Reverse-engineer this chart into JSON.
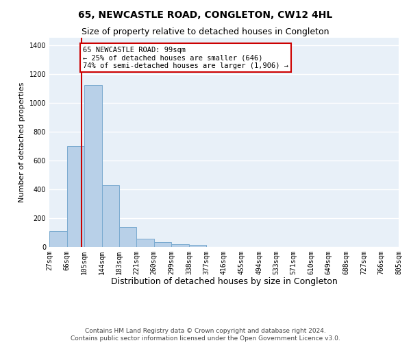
{
  "title": "65, NEWCASTLE ROAD, CONGLETON, CW12 4HL",
  "subtitle": "Size of property relative to detached houses in Congleton",
  "xlabel": "Distribution of detached houses by size in Congleton",
  "ylabel": "Number of detached properties",
  "bar_color": "#b8d0e8",
  "bar_edge_color": "#7aaad0",
  "background_color": "#e8f0f8",
  "grid_color": "#ffffff",
  "vline_x": 99,
  "vline_color": "#cc0000",
  "annotation_text": "65 NEWCASTLE ROAD: 99sqm\n← 25% of detached houses are smaller (646)\n74% of semi-detached houses are larger (1,906) →",
  "annotation_box_color": "#cc0000",
  "bins": [
    27,
    66,
    105,
    144,
    183,
    221,
    260,
    299,
    338,
    377,
    416,
    455,
    494,
    533,
    571,
    610,
    649,
    688,
    727,
    766,
    805
  ],
  "bar_heights": [
    110,
    700,
    1120,
    430,
    140,
    55,
    35,
    20,
    15,
    0,
    0,
    0,
    0,
    0,
    0,
    0,
    0,
    0,
    0,
    0
  ],
  "ylim": [
    0,
    1450
  ],
  "yticks": [
    0,
    200,
    400,
    600,
    800,
    1000,
    1200,
    1400
  ],
  "footer": "Contains HM Land Registry data © Crown copyright and database right 2024.\nContains public sector information licensed under the Open Government Licence v3.0.",
  "title_fontsize": 10,
  "subtitle_fontsize": 9,
  "xlabel_fontsize": 9,
  "ylabel_fontsize": 8,
  "tick_fontsize": 7,
  "footer_fontsize": 6.5,
  "annot_fontsize": 7.5
}
